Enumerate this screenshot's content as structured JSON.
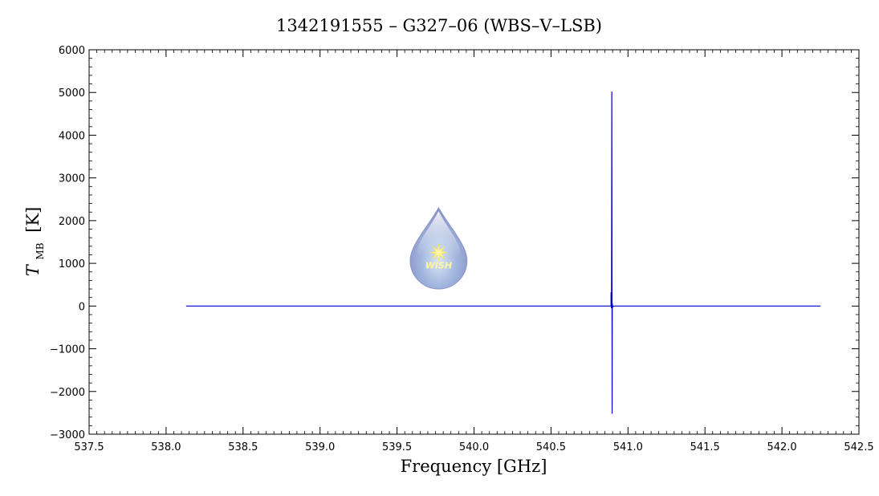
{
  "chart_data": {
    "type": "line",
    "title": "1342191555 – G327–06 (WBS–V–LSB)",
    "xlabel": "Frequency [GHz]",
    "ylabel_main": "T",
    "ylabel_sub": "MB",
    "ylabel_unit": "[K]",
    "xlim": [
      537.5,
      542.5
    ],
    "ylim": [
      -3000,
      6000
    ],
    "x_ticks": [
      "537.5",
      "538.0",
      "538.5",
      "539.0",
      "539.5",
      "540.0",
      "540.5",
      "541.0",
      "541.5",
      "542.0",
      "542.5"
    ],
    "y_ticks": [
      "−3000",
      "−2000",
      "−1000",
      "0",
      "1000",
      "2000",
      "3000",
      "4000",
      "5000",
      "6000"
    ],
    "grid": false,
    "series": [
      {
        "color": "#0000cc",
        "x": [
          538.13,
          540.89,
          540.89,
          540.892,
          540.893,
          540.895,
          540.897,
          540.898,
          540.9,
          540.905,
          542.25
        ],
        "y": [
          0,
          0,
          320,
          -50,
          120,
          5020,
          -2520,
          60,
          -30,
          0,
          0
        ]
      }
    ],
    "logo": {
      "text": "WISH",
      "icon": "water-drop-logo-icon",
      "x": 539.77,
      "y_bottom": 400,
      "y_top": 2300
    }
  }
}
